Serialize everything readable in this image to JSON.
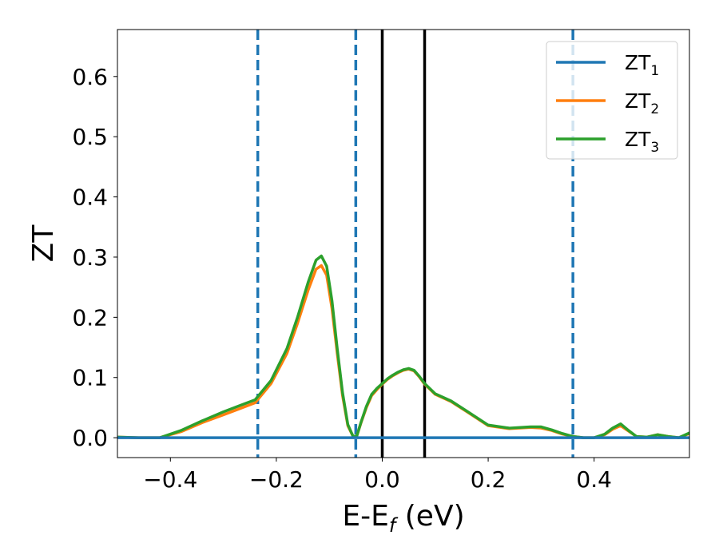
{
  "chart_data": {
    "type": "line",
    "title": "",
    "xlabel": "E-E",
    "xlabel_sub": "f",
    "xlabel_unit": "(eV)",
    "ylabel": "ZT",
    "xlim": [
      -0.5,
      0.58
    ],
    "ylim": [
      -0.033,
      0.678
    ],
    "x_ticks": [
      -0.4,
      -0.2,
      0.0,
      0.2,
      0.4
    ],
    "x_tick_labels": [
      "−0.4",
      "−0.2",
      "0.0",
      "0.2",
      "0.4"
    ],
    "y_ticks": [
      0.0,
      0.1,
      0.2,
      0.3,
      0.4,
      0.5,
      0.6
    ],
    "y_tick_labels": [
      "0.0",
      "0.1",
      "0.2",
      "0.3",
      "0.4",
      "0.5",
      "0.6"
    ],
    "grid": false,
    "legend_position": "top-right",
    "vlines_dashed": {
      "x": [
        -0.235,
        -0.05,
        0.36
      ],
      "color": "#1f77b4"
    },
    "vlines_solid": {
      "x": [
        0.0,
        0.08
      ],
      "color": "#000000"
    },
    "series": [
      {
        "name": "ZT",
        "sub": "1",
        "color": "#1f77b4",
        "x": [
          -0.5,
          0.58
        ],
        "y": [
          0.0,
          0.0
        ]
      },
      {
        "name": "ZT",
        "sub": "2",
        "color": "#ff7f0e",
        "x": [
          -0.5,
          -0.46,
          -0.42,
          -0.38,
          -0.34,
          -0.3,
          -0.27,
          -0.24,
          -0.21,
          -0.18,
          -0.16,
          -0.14,
          -0.125,
          -0.115,
          -0.105,
          -0.095,
          -0.085,
          -0.075,
          -0.065,
          -0.055,
          -0.048,
          -0.04,
          -0.03,
          -0.02,
          -0.01,
          0.0,
          0.01,
          0.02,
          0.03,
          0.04,
          0.05,
          0.06,
          0.07,
          0.08,
          0.1,
          0.13,
          0.16,
          0.2,
          0.24,
          0.28,
          0.3,
          0.32,
          0.34,
          0.36,
          0.38,
          0.4,
          0.42,
          0.435,
          0.45,
          0.465,
          0.48,
          0.5,
          0.52,
          0.54,
          0.56,
          0.58
        ],
        "y": [
          0.001,
          0.0,
          0.0,
          0.01,
          0.025,
          0.038,
          0.048,
          0.058,
          0.09,
          0.14,
          0.19,
          0.245,
          0.28,
          0.286,
          0.27,
          0.215,
          0.14,
          0.07,
          0.02,
          0.002,
          0.003,
          0.025,
          0.05,
          0.07,
          0.08,
          0.089,
          0.097,
          0.103,
          0.108,
          0.112,
          0.114,
          0.111,
          0.101,
          0.089,
          0.072,
          0.06,
          0.043,
          0.02,
          0.015,
          0.017,
          0.016,
          0.012,
          0.006,
          0.002,
          0.0,
          0.0,
          0.005,
          0.014,
          0.02,
          0.011,
          0.002,
          0.001,
          0.005,
          0.002,
          0.0,
          0.007
        ]
      },
      {
        "name": "ZT",
        "sub": "3",
        "color": "#2ca02c",
        "x": [
          -0.5,
          -0.46,
          -0.42,
          -0.38,
          -0.34,
          -0.3,
          -0.27,
          -0.24,
          -0.21,
          -0.18,
          -0.16,
          -0.14,
          -0.125,
          -0.115,
          -0.105,
          -0.095,
          -0.085,
          -0.075,
          -0.065,
          -0.055,
          -0.048,
          -0.04,
          -0.03,
          -0.02,
          -0.01,
          0.0,
          0.01,
          0.02,
          0.03,
          0.04,
          0.05,
          0.06,
          0.07,
          0.08,
          0.1,
          0.13,
          0.16,
          0.2,
          0.24,
          0.28,
          0.3,
          0.32,
          0.34,
          0.36,
          0.38,
          0.4,
          0.42,
          0.435,
          0.45,
          0.465,
          0.48,
          0.5,
          0.52,
          0.54,
          0.56,
          0.58
        ],
        "y": [
          0.001,
          0.0,
          0.0,
          0.012,
          0.028,
          0.043,
          0.053,
          0.063,
          0.095,
          0.148,
          0.2,
          0.258,
          0.295,
          0.302,
          0.285,
          0.228,
          0.148,
          0.075,
          0.022,
          0.002,
          0.003,
          0.026,
          0.052,
          0.072,
          0.082,
          0.09,
          0.098,
          0.104,
          0.109,
          0.113,
          0.115,
          0.112,
          0.102,
          0.09,
          0.073,
          0.061,
          0.044,
          0.021,
          0.016,
          0.018,
          0.018,
          0.013,
          0.007,
          0.002,
          0.0,
          0.0,
          0.006,
          0.016,
          0.023,
          0.012,
          0.002,
          0.001,
          0.005,
          0.002,
          0.0,
          0.008
        ]
      }
    ]
  }
}
